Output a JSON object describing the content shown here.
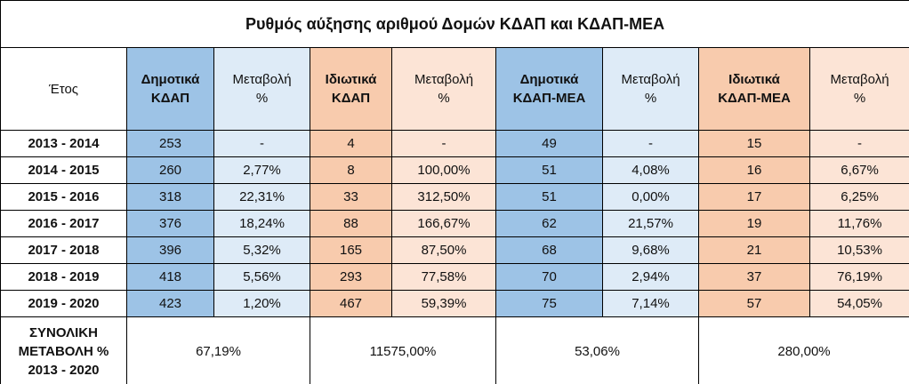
{
  "title": "Ρυθμός αύξησης αριθμού Δομών ΚΔΑΠ και ΚΔΑΠ-ΜΕΑ",
  "headers": [
    [
      "Έτος"
    ],
    [
      "Δημοτικά",
      "ΚΔΑΠ"
    ],
    [
      "Μεταβολή",
      "%"
    ],
    [
      "Ιδιωτικά",
      "ΚΔΑΠ"
    ],
    [
      "Μεταβολή",
      "%"
    ],
    [
      "Δημοτικά",
      "ΚΔΑΠ-ΜΕΑ"
    ],
    [
      "Μεταβολή",
      "%"
    ],
    [
      "Ιδιωτικά",
      "ΚΔΑΠ-ΜΕΑ"
    ],
    [
      "Μεταβολή",
      "%"
    ]
  ],
  "rows": [
    [
      "2013 - 2014",
      "253",
      "-",
      "4",
      "-",
      "49",
      "-",
      "15",
      "-"
    ],
    [
      "2014 - 2015",
      "260",
      "2,77%",
      "8",
      "100,00%",
      "51",
      "4,08%",
      "16",
      "6,67%"
    ],
    [
      "2015 - 2016",
      "318",
      "22,31%",
      "33",
      "312,50%",
      "51",
      "0,00%",
      "17",
      "6,25%"
    ],
    [
      "2016 - 2017",
      "376",
      "18,24%",
      "88",
      "166,67%",
      "62",
      "21,57%",
      "19",
      "11,76%"
    ],
    [
      "2017 - 2018",
      "396",
      "5,32%",
      "165",
      "87,50%",
      "68",
      "9,68%",
      "21",
      "10,53%"
    ],
    [
      "2018 - 2019",
      "418",
      "5,56%",
      "293",
      "77,58%",
      "70",
      "2,94%",
      "37",
      "76,19%"
    ],
    [
      "2019 - 2020",
      "423",
      "1,20%",
      "467",
      "59,39%",
      "75",
      "7,14%",
      "57",
      "54,05%"
    ]
  ],
  "total": {
    "label": [
      "ΣΥΝΟΛΙΚΗ",
      "ΜΕΤΑΒΟΛΗ %",
      "2013 - 2020"
    ],
    "values": [
      "67,19%",
      "11575,00%",
      "53,06%",
      "280,00%"
    ]
  }
}
